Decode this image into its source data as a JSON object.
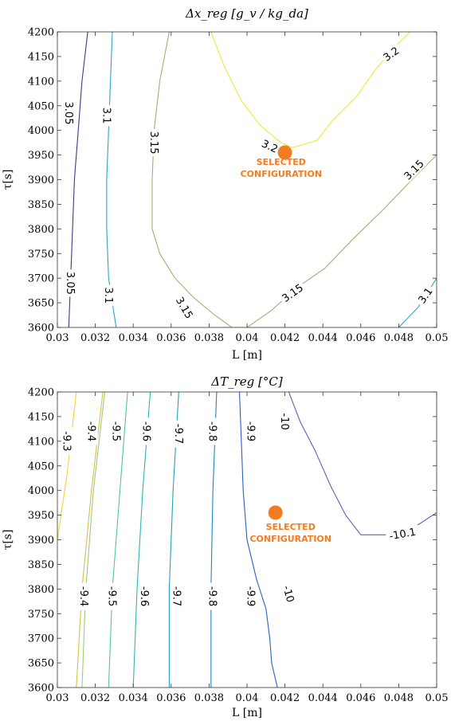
{
  "chart_data": [
    {
      "type": "contour",
      "title": "Δx_reg [g_v / kg_da]",
      "xlabel": "L [m]",
      "ylabel": "τ[s]",
      "xlim": [
        0.03,
        0.05
      ],
      "ylim": [
        3600,
        4200
      ],
      "x_ticks": [
        "0.03",
        "0.032",
        "0.034",
        "0.036",
        "0.038",
        "0.04",
        "0.042",
        "0.044",
        "0.046",
        "0.048",
        "0.05"
      ],
      "y_ticks": [
        "3600",
        "3650",
        "3700",
        "3750",
        "3800",
        "3850",
        "3900",
        "3950",
        "4000",
        "4050",
        "4100",
        "4150",
        "4200"
      ],
      "contours": [
        {
          "level": 3.05,
          "color": "#3a3a8c",
          "points": [
            [
              0.0306,
              3600
            ],
            [
              0.0307,
              3700
            ],
            [
              0.0309,
              3900
            ],
            [
              0.0311,
              4000
            ],
            [
              0.0313,
              4100
            ],
            [
              0.0316,
              4200
            ]
          ]
        },
        {
          "level": 3.1,
          "color": "#2aa7c9",
          "points": [
            [
              0.0331,
              3600
            ],
            [
              0.0329,
              3650
            ],
            [
              0.0327,
              3700
            ],
            [
              0.0326,
              3800
            ],
            [
              0.0326,
              3900
            ],
            [
              0.0327,
              4000
            ],
            [
              0.0328,
              4100
            ],
            [
              0.0329,
              4200
            ]
          ]
        },
        {
          "level": 3.15,
          "color": "#a7ad72",
          "points": [
            [
              0.0392,
              3600
            ],
            [
              0.0383,
              3625
            ],
            [
              0.0372,
              3660
            ],
            [
              0.0362,
              3700
            ],
            [
              0.0354,
              3750
            ],
            [
              0.035,
              3800
            ],
            [
              0.035,
              3900
            ],
            [
              0.0351,
              4000
            ],
            [
              0.0354,
              4100
            ],
            [
              0.0359,
              4200
            ]
          ]
        },
        {
          "level": 3.15,
          "color": "#a7ad72",
          "points": [
            [
              0.0387,
              3600
            ],
            [
              0.04,
              3600
            ],
            [
              0.0413,
              3635
            ],
            [
              0.0426,
              3680
            ],
            [
              0.0441,
              3720
            ],
            [
              0.0456,
              3780
            ],
            [
              0.0472,
              3840
            ],
            [
              0.0487,
              3900
            ],
            [
              0.05,
              3950
            ]
          ]
        },
        {
          "level": 3.1,
          "color": "#2aa7c9",
          "points": [
            [
              0.048,
              3600
            ],
            [
              0.049,
              3640
            ],
            [
              0.05,
              3700
            ]
          ]
        },
        {
          "level": 3.2,
          "color": "#f2e63a",
          "points": [
            [
              0.0381,
              4200
            ],
            [
              0.0388,
              4130
            ],
            [
              0.0397,
              4060
            ],
            [
              0.0407,
              4010
            ],
            [
              0.0418,
              3975
            ],
            [
              0.0424,
              3965
            ],
            [
              0.0437,
              3980
            ],
            [
              0.0445,
              4020
            ],
            [
              0.0458,
              4070
            ],
            [
              0.0467,
              4120
            ],
            [
              0.0478,
              4170
            ],
            [
              0.0486,
              4200
            ]
          ]
        }
      ],
      "contour_labels": [
        {
          "text": "3.05",
          "x": 0.0306,
          "y": 4035,
          "rotate": 90
        },
        {
          "text": "3.1",
          "x": 0.0326,
          "y": 4030,
          "rotate": 90
        },
        {
          "text": "3.15",
          "x": 0.0351,
          "y": 3975,
          "rotate": 90
        },
        {
          "text": "3.05",
          "x": 0.0307,
          "y": 3690,
          "rotate": 90
        },
        {
          "text": "3.1",
          "x": 0.0327,
          "y": 3665,
          "rotate": 90
        },
        {
          "text": "3.15",
          "x": 0.0367,
          "y": 3640,
          "rotate": 60
        },
        {
          "text": "3.15",
          "x": 0.0424,
          "y": 3670,
          "rotate": -35
        },
        {
          "text": "3.2",
          "x": 0.0412,
          "y": 3968,
          "rotate": 25
        },
        {
          "text": "3.2",
          "x": 0.0476,
          "y": 4155,
          "rotate": -35
        },
        {
          "text": "3.15",
          "x": 0.0488,
          "y": 3920,
          "rotate": -45
        },
        {
          "text": "3.1",
          "x": 0.0494,
          "y": 3665,
          "rotate": -55
        }
      ],
      "marker": {
        "x": 0.042,
        "y": 3955,
        "color": "#f47b20"
      },
      "annotation": {
        "lines": [
          "SELECTED",
          "CONFIGURATION"
        ],
        "color": "#f47b20",
        "x": 0.0418,
        "y": 3930
      }
    },
    {
      "type": "contour",
      "title": "ΔT_reg [°C]",
      "xlabel": "L [m]",
      "ylabel": "τ[s]",
      "xlim": [
        0.03,
        0.05
      ],
      "ylim": [
        3600,
        4200
      ],
      "x_ticks": [
        "0.03",
        "0.032",
        "0.034",
        "0.036",
        "0.038",
        "0.04",
        "0.042",
        "0.044",
        "0.046",
        "0.048",
        "0.05"
      ],
      "y_ticks": [
        "3600",
        "3650",
        "3700",
        "3750",
        "3800",
        "3850",
        "3900",
        "3950",
        "4000",
        "4050",
        "4100",
        "4150",
        "4200"
      ],
      "contours": [
        {
          "level": -9.3,
          "color": "#f2d23a",
          "points": [
            [
              0.03,
              3900
            ],
            [
              0.0305,
              4030
            ],
            [
              0.031,
              4200
            ]
          ]
        },
        {
          "level": -9.4,
          "color": "#d6c04c",
          "points": [
            [
              0.031,
              3600
            ],
            [
              0.0313,
              3800
            ],
            [
              0.0318,
              4000
            ],
            [
              0.0324,
              4200
            ]
          ]
        },
        {
          "level": -9.5,
          "color": "#a8c67a",
          "points": [
            [
              0.0313,
              3600
            ],
            [
              0.0315,
              3800
            ],
            [
              0.0319,
              4000
            ],
            [
              0.0325,
              4200
            ]
          ]
        },
        {
          "level": -9.6,
          "color": "#4fc4a8",
          "points": [
            [
              0.0327,
              3600
            ],
            [
              0.0329,
              3800
            ],
            [
              0.0333,
              4000
            ],
            [
              0.0337,
              4200
            ]
          ]
        },
        {
          "level": -9.7,
          "color": "#2bb5b0",
          "points": [
            [
              0.034,
              3600
            ],
            [
              0.0342,
              3800
            ],
            [
              0.0345,
              4000
            ],
            [
              0.0349,
              4200
            ]
          ]
        },
        {
          "level": -9.8,
          "color": "#1fa1be",
          "points": [
            [
              0.0359,
              3600
            ],
            [
              0.0359,
              3800
            ],
            [
              0.0361,
              4000
            ],
            [
              0.0364,
              4200
            ]
          ]
        },
        {
          "level": -9.9,
          "color": "#1a84c7",
          "points": [
            [
              0.0381,
              3600
            ],
            [
              0.0381,
              3800
            ],
            [
              0.0382,
              4000
            ],
            [
              0.0384,
              4200
            ]
          ]
        },
        {
          "level": -10,
          "color": "#2760c8",
          "points": [
            [
              0.0416,
              3600
            ],
            [
              0.0413,
              3650
            ],
            [
              0.0412,
              3700
            ],
            [
              0.041,
              3760
            ],
            [
              0.0405,
              3820
            ],
            [
              0.04,
              3900
            ],
            [
              0.0398,
              4000
            ],
            [
              0.0397,
              4100
            ],
            [
              0.0396,
              4200
            ]
          ]
        },
        {
          "level": -10.1,
          "color": "#6a5cb0",
          "points": [
            [
              0.0422,
              4200
            ],
            [
              0.0428,
              4140
            ],
            [
              0.0436,
              4080
            ],
            [
              0.0444,
              4010
            ],
            [
              0.0452,
              3950
            ],
            [
              0.046,
              3910
            ],
            [
              0.0477,
              3910
            ],
            [
              0.049,
              3930
            ],
            [
              0.05,
              3955
            ]
          ]
        }
      ],
      "contour_labels": [
        {
          "text": "-9.3",
          "x": 0.0305,
          "y": 4100,
          "rotate": 90
        },
        {
          "text": "-9.4",
          "x": 0.0318,
          "y": 4120,
          "rotate": 90
        },
        {
          "text": "-9.5",
          "x": 0.0331,
          "y": 4120,
          "rotate": 90
        },
        {
          "text": "-9.6",
          "x": 0.0347,
          "y": 4120,
          "rotate": 90
        },
        {
          "text": "-9.7",
          "x": 0.0364,
          "y": 4115,
          "rotate": 90
        },
        {
          "text": "-9.8",
          "x": 0.0382,
          "y": 4120,
          "rotate": 90
        },
        {
          "text": "-9.9",
          "x": 0.0402,
          "y": 4120,
          "rotate": 90
        },
        {
          "text": "-10",
          "x": 0.042,
          "y": 4140,
          "rotate": 90
        },
        {
          "text": "-9.4",
          "x": 0.0314,
          "y": 3785,
          "rotate": 90
        },
        {
          "text": "-9.5",
          "x": 0.0329,
          "y": 3785,
          "rotate": 90
        },
        {
          "text": "-9.6",
          "x": 0.0346,
          "y": 3785,
          "rotate": 90
        },
        {
          "text": "-9.7",
          "x": 0.0363,
          "y": 3785,
          "rotate": 90
        },
        {
          "text": "-9.8",
          "x": 0.0382,
          "y": 3785,
          "rotate": 90
        },
        {
          "text": "-9.9",
          "x": 0.0402,
          "y": 3785,
          "rotate": 90
        },
        {
          "text": "-10",
          "x": 0.0422,
          "y": 3790,
          "rotate": 75
        },
        {
          "text": "-10.1",
          "x": 0.0482,
          "y": 3912,
          "rotate": -10
        }
      ],
      "marker": {
        "x": 0.0415,
        "y": 3955,
        "color": "#f47b20"
      },
      "annotation": {
        "lines": [
          "SELECTED",
          "CONFIGURATION"
        ],
        "color": "#f47b20",
        "x": 0.0423,
        "y": 3920
      }
    }
  ]
}
